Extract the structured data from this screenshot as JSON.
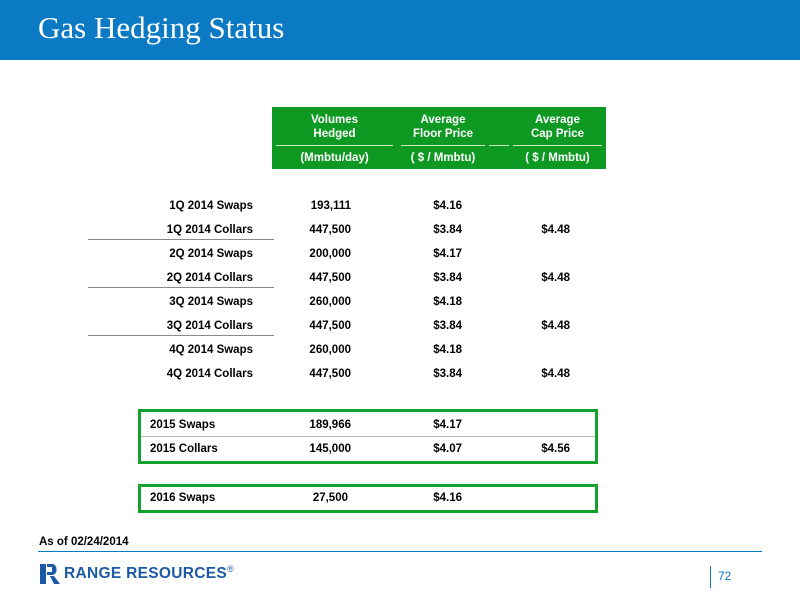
{
  "slide": {
    "title": "Gas Hedging Status"
  },
  "table": {
    "headers": [
      {
        "line1": "Volumes",
        "line2": "Hedged",
        "unit": "(Mmbtu/day)"
      },
      {
        "line1": "Average",
        "line2": "Floor Price",
        "unit": "( $ / Mmbtu)"
      },
      {
        "line1": "Average",
        "line2": "Cap Price",
        "unit": "( $ / Mmbtu)"
      }
    ],
    "rows_2014": [
      {
        "label": "1Q 2014 Swaps",
        "volume": "193,111",
        "floor": "$4.16",
        "cap": ""
      },
      {
        "label": "1Q 2014 Collars",
        "volume": "447,500",
        "floor": "$3.84",
        "cap": "$4.48"
      },
      {
        "label": "2Q 2014 Swaps",
        "volume": "200,000",
        "floor": "$4.17",
        "cap": ""
      },
      {
        "label": "2Q 2014 Collars",
        "volume": "447,500",
        "floor": "$3.84",
        "cap": "$4.48"
      },
      {
        "label": "3Q 2014 Swaps",
        "volume": "260,000",
        "floor": "$4.18",
        "cap": ""
      },
      {
        "label": "3Q 2014 Collars",
        "volume": "447,500",
        "floor": "$3.84",
        "cap": "$4.48"
      },
      {
        "label": "4Q 2014 Swaps",
        "volume": "260,000",
        "floor": "$4.18",
        "cap": ""
      },
      {
        "label": "4Q 2014 Collars",
        "volume": "447,500",
        "floor": "$3.84",
        "cap": "$4.48"
      }
    ],
    "rows_2015": [
      {
        "label": "2015 Swaps",
        "volume": "189,966",
        "floor": "$4.17",
        "cap": ""
      },
      {
        "label": "2015 Collars",
        "volume": "145,000",
        "floor": "$4.07",
        "cap": "$4.56"
      }
    ],
    "rows_2016": [
      {
        "label": "2016 Swaps",
        "volume": "27,500",
        "floor": "$4.16",
        "cap": ""
      }
    ]
  },
  "footer": {
    "as_of": "As of 02/24/2014",
    "logo_text": "RANGE RESOURCES",
    "logo_mark": "®",
    "page_number": "72"
  },
  "colors": {
    "title_bar": "#0a7ac4",
    "header_green": "#0e9a22",
    "box_green": "#16a02c",
    "logo_blue": "#1c5aa6"
  }
}
